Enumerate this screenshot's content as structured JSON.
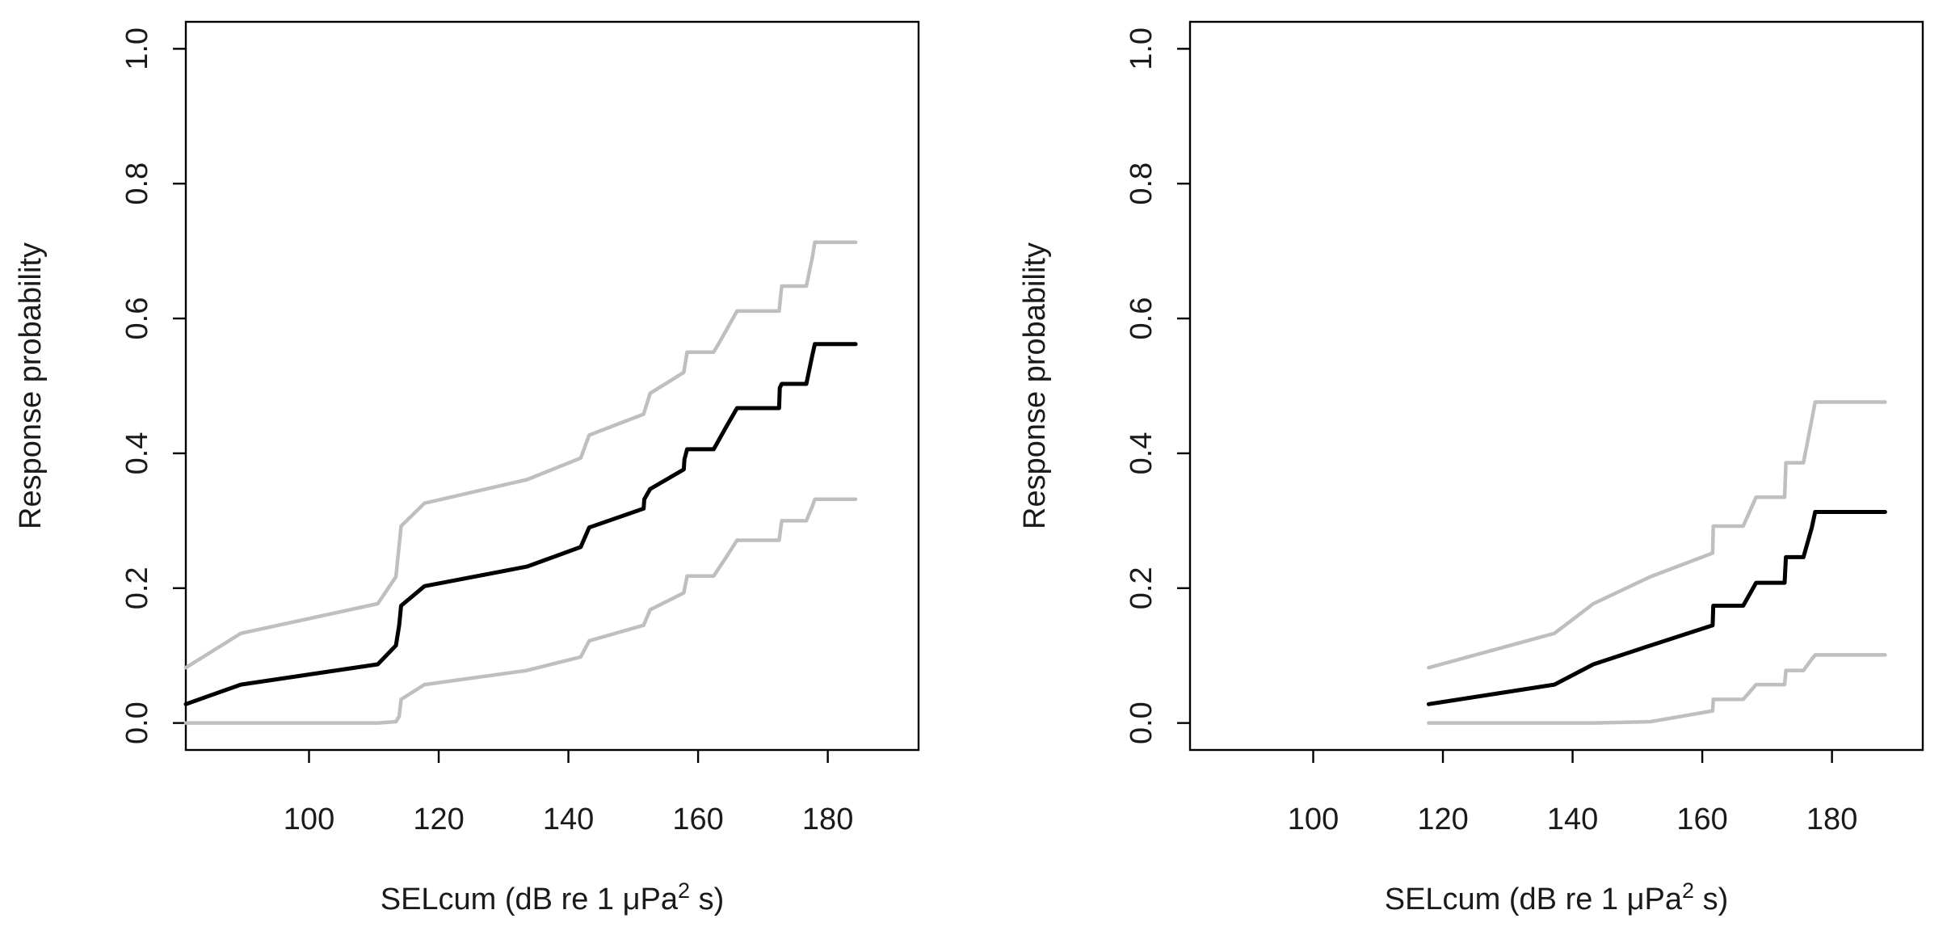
{
  "chart_data": [
    {
      "type": "line",
      "xlabel_prefix": "SELcum (dB re 1 ",
      "xlabel_mu": "μ",
      "xlabel_unit": "Pa",
      "xlabel_sup": "2",
      "xlabel_suffix": " s)",
      "ylabel": "Response probability",
      "xlim": [
        81,
        194
      ],
      "ylim": [
        -0.04,
        1.04
      ],
      "xticks": [
        100,
        120,
        140,
        160,
        180
      ],
      "xtick_labels": [
        "100",
        "120",
        "140",
        "160",
        "180"
      ],
      "yticks": [
        0.0,
        0.2,
        0.4,
        0.6,
        0.8,
        1.0
      ],
      "ytick_labels": [
        "0.0",
        "0.2",
        "0.4",
        "0.6",
        "0.8",
        "1.0"
      ],
      "grid": false,
      "series": [
        {
          "role": "estimate",
          "color": "#000000",
          "x": [
            81,
            89.5,
            110.6,
            113.4,
            113.9,
            114.2,
            117.8,
            133.6,
            141.9,
            143.2,
            151.6,
            151.7,
            152.6,
            157.8,
            157.9,
            158.3,
            162.4,
            164.2,
            166.0,
            172.5,
            172.6,
            172.9,
            176.7,
            177.6,
            178.0,
            184.3
          ],
          "y": [
            0.028,
            0.057,
            0.087,
            0.115,
            0.145,
            0.174,
            0.203,
            0.232,
            0.261,
            0.29,
            0.318,
            0.332,
            0.347,
            0.376,
            0.391,
            0.406,
            0.406,
            0.437,
            0.467,
            0.467,
            0.497,
            0.503,
            0.503,
            0.545,
            0.562,
            0.562
          ]
        },
        {
          "role": "upper",
          "color": "#bfbfbf",
          "x": [
            81,
            89.5,
            110.6,
            113.4,
            114.2,
            117.8,
            133.6,
            141.9,
            143.2,
            151.6,
            152.6,
            157.8,
            158.3,
            162.4,
            164.2,
            166.0,
            172.5,
            172.9,
            176.7,
            177.6,
            178.0,
            184.3
          ],
          "y": [
            0.082,
            0.133,
            0.177,
            0.217,
            0.292,
            0.326,
            0.361,
            0.393,
            0.427,
            0.458,
            0.489,
            0.52,
            0.55,
            0.55,
            0.58,
            0.611,
            0.611,
            0.648,
            0.648,
            0.69,
            0.713,
            0.713
          ]
        },
        {
          "role": "lower",
          "color": "#bfbfbf",
          "x": [
            81,
            89.5,
            110.6,
            113.4,
            113.9,
            114.2,
            117.8,
            133.6,
            141.9,
            143.2,
            151.6,
            152.6,
            157.8,
            158.3,
            162.4,
            164.2,
            166.0,
            172.5,
            172.9,
            176.7,
            177.6,
            178.0,
            184.3
          ],
          "y": [
            0.0,
            0.0,
            0.0,
            0.002,
            0.01,
            0.035,
            0.057,
            0.078,
            0.098,
            0.122,
            0.145,
            0.168,
            0.193,
            0.218,
            0.218,
            0.244,
            0.271,
            0.271,
            0.3,
            0.3,
            0.321,
            0.332,
            0.332
          ]
        }
      ]
    },
    {
      "type": "line",
      "xlabel_prefix": "SELcum (dB re 1 ",
      "xlabel_mu": "μ",
      "xlabel_unit": "Pa",
      "xlabel_sup": "2",
      "xlabel_suffix": " s)",
      "ylabel": "Response probability",
      "xlim": [
        81,
        194
      ],
      "ylim": [
        -0.04,
        1.04
      ],
      "xticks": [
        100,
        120,
        140,
        160,
        180
      ],
      "xtick_labels": [
        "100",
        "120",
        "140",
        "160",
        "180"
      ],
      "yticks": [
        0.0,
        0.2,
        0.4,
        0.6,
        0.8,
        1.0
      ],
      "ytick_labels": [
        "0.0",
        "0.2",
        "0.4",
        "0.6",
        "0.8",
        "1.0"
      ],
      "grid": false,
      "series": [
        {
          "role": "estimate",
          "color": "#000000",
          "x": [
            117.8,
            137.2,
            143.2,
            152.0,
            161.6,
            161.7,
            166.3,
            168.3,
            172.7,
            172.9,
            175.6,
            176.9,
            177.4,
            188.2
          ],
          "y": [
            0.028,
            0.057,
            0.087,
            0.115,
            0.145,
            0.174,
            0.174,
            0.208,
            0.208,
            0.246,
            0.246,
            0.29,
            0.313,
            0.313
          ]
        },
        {
          "role": "upper",
          "color": "#bfbfbf",
          "x": [
            117.8,
            137.2,
            143.2,
            152.0,
            161.6,
            161.7,
            166.3,
            168.3,
            172.7,
            172.9,
            175.6,
            176.9,
            177.4,
            188.2
          ],
          "y": [
            0.082,
            0.133,
            0.177,
            0.217,
            0.252,
            0.292,
            0.292,
            0.335,
            0.335,
            0.386,
            0.386,
            0.45,
            0.476,
            0.476
          ]
        },
        {
          "role": "lower",
          "color": "#bfbfbf",
          "x": [
            117.8,
            143.2,
            152.0,
            161.6,
            161.7,
            166.3,
            168.3,
            172.7,
            172.9,
            175.6,
            176.9,
            177.4,
            188.2
          ],
          "y": [
            0.0,
            0.0,
            0.002,
            0.018,
            0.035,
            0.035,
            0.057,
            0.057,
            0.078,
            0.078,
            0.095,
            0.101,
            0.101
          ]
        }
      ]
    }
  ]
}
